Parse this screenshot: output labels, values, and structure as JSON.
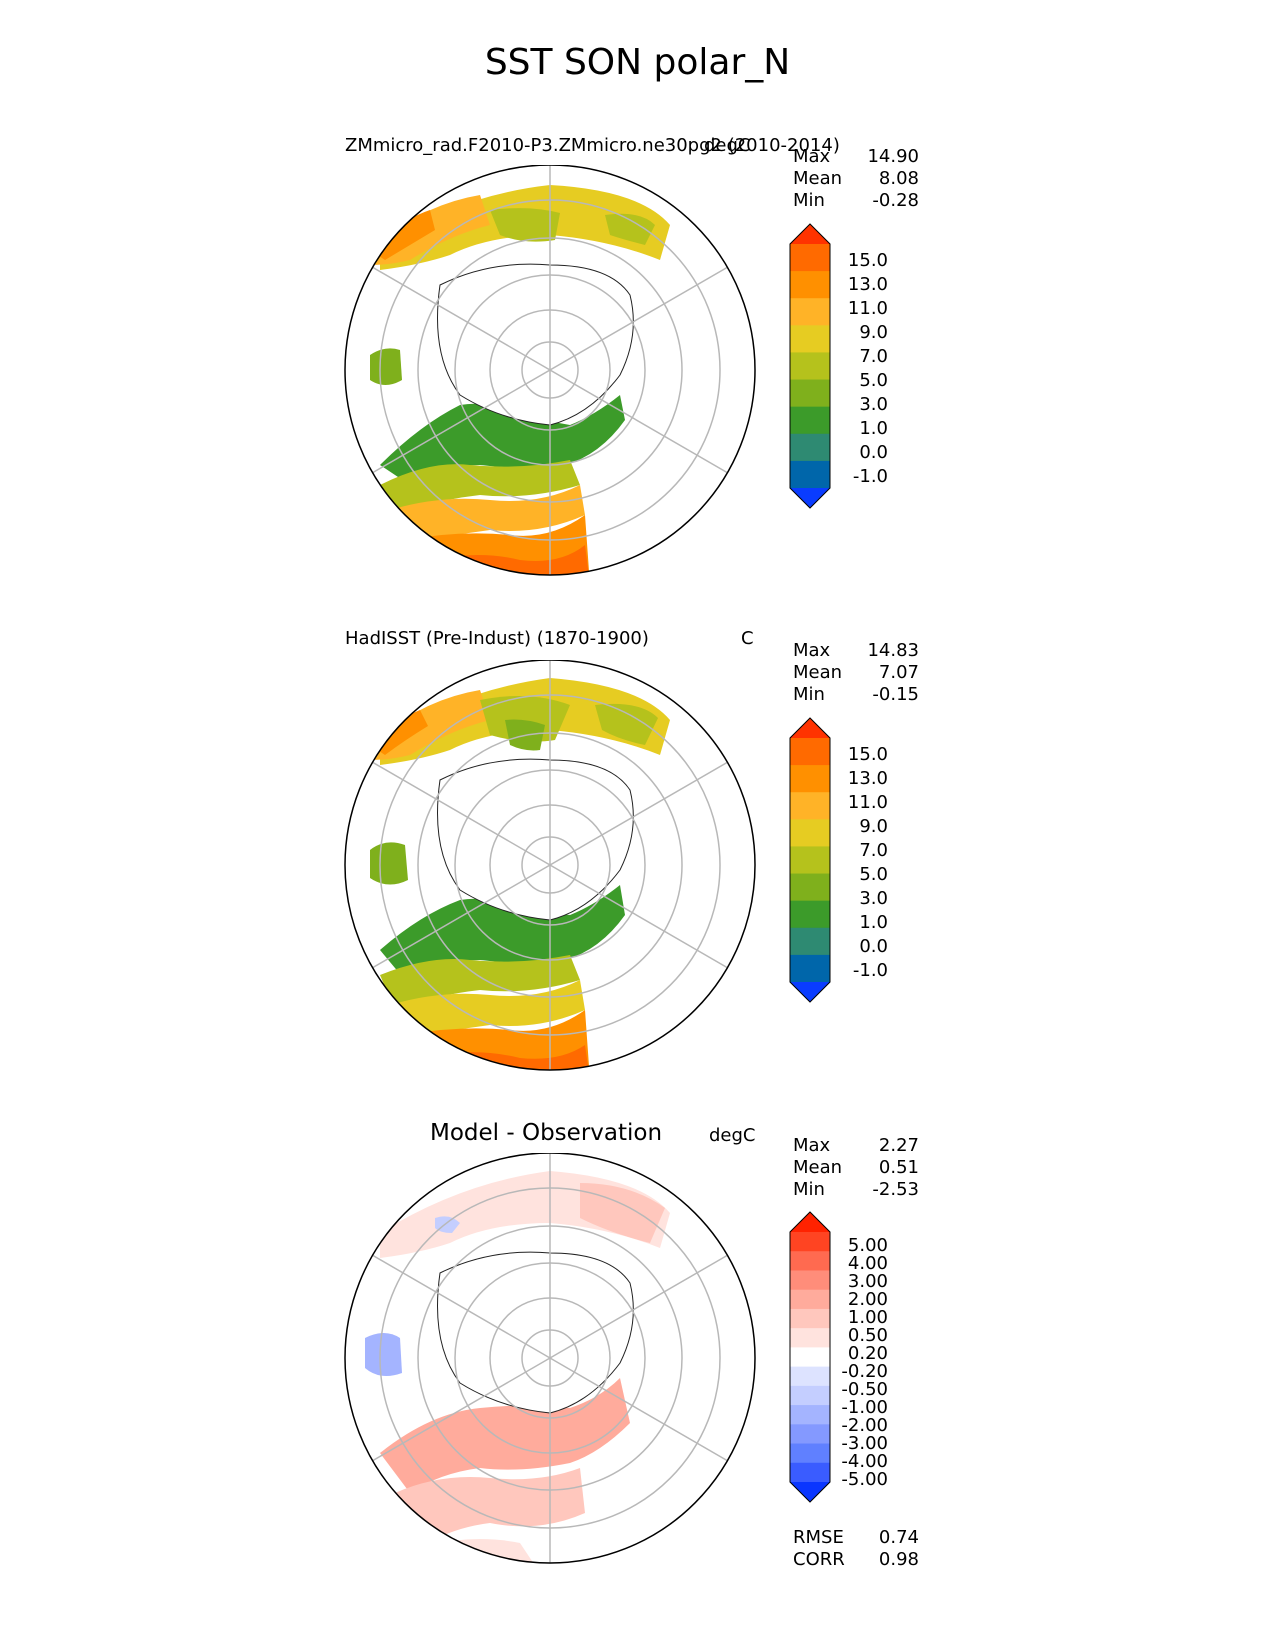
{
  "figure": {
    "title": "SST SON polar_N"
  },
  "chart_data": [
    {
      "type": "heatmap",
      "projection": "north-polar-stereographic",
      "title": "ZMmicro_rad.F2010-P3.ZMmicro.ne30pg2 (2010-2014)",
      "units": "degC",
      "stats": {
        "max_label": "Max",
        "max": "14.90",
        "mean_label": "Mean",
        "mean": "8.08",
        "min_label": "Min",
        "min": "-0.28"
      },
      "colorbar": {
        "levels": [
          "15.0",
          "13.0",
          "11.0",
          "9.0",
          "7.0",
          "5.0",
          "3.0",
          "1.0",
          "0.0",
          "-1.0"
        ],
        "colors": [
          "#ff3300",
          "#ff6a00",
          "#ff9000",
          "#ffb327",
          "#e6cc22",
          "#b5c21c",
          "#7fb01c",
          "#3c9b2a",
          "#2e8a72",
          "#0066aa",
          "#0a3cff"
        ]
      }
    },
    {
      "type": "heatmap",
      "projection": "north-polar-stereographic",
      "title": "HadISST (Pre-Indust) (1870-1900)",
      "units": "C",
      "stats": {
        "max_label": "Max",
        "max": "14.83",
        "mean_label": "Mean",
        "mean": "7.07",
        "min_label": "Min",
        "min": "-0.15"
      },
      "colorbar": {
        "levels": [
          "15.0",
          "13.0",
          "11.0",
          "9.0",
          "7.0",
          "5.0",
          "3.0",
          "1.0",
          "0.0",
          "-1.0"
        ],
        "colors": [
          "#ff3300",
          "#ff6a00",
          "#ff9000",
          "#ffb327",
          "#e6cc22",
          "#b5c21c",
          "#7fb01c",
          "#3c9b2a",
          "#2e8a72",
          "#0066aa",
          "#0a3cff"
        ]
      }
    },
    {
      "type": "heatmap",
      "projection": "north-polar-stereographic",
      "title": "Model - Observation",
      "units": "degC",
      "stats": {
        "max_label": "Max",
        "max": "2.27",
        "mean_label": "Mean",
        "mean": "0.51",
        "min_label": "Min",
        "min": "-2.53"
      },
      "metrics": {
        "rmse_label": "RMSE",
        "rmse": "0.74",
        "corr_label": "CORR",
        "corr": "0.98"
      },
      "colorbar": {
        "levels": [
          "5.00",
          "4.00",
          "3.00",
          "2.00",
          "1.00",
          "0.50",
          "0.20",
          "-0.20",
          "-0.50",
          "-1.00",
          "-2.00",
          "-3.00",
          "-4.00",
          "-5.00"
        ],
        "colors": [
          "#ff2200",
          "#ff4422",
          "#ff6a50",
          "#ff8d7a",
          "#ffab9c",
          "#ffc7bd",
          "#ffe3de",
          "#ffffff",
          "#dde3ff",
          "#c4ceff",
          "#a4b4ff",
          "#8499ff",
          "#6080ff",
          "#3a5cff",
          "#0a36ff"
        ]
      }
    }
  ]
}
